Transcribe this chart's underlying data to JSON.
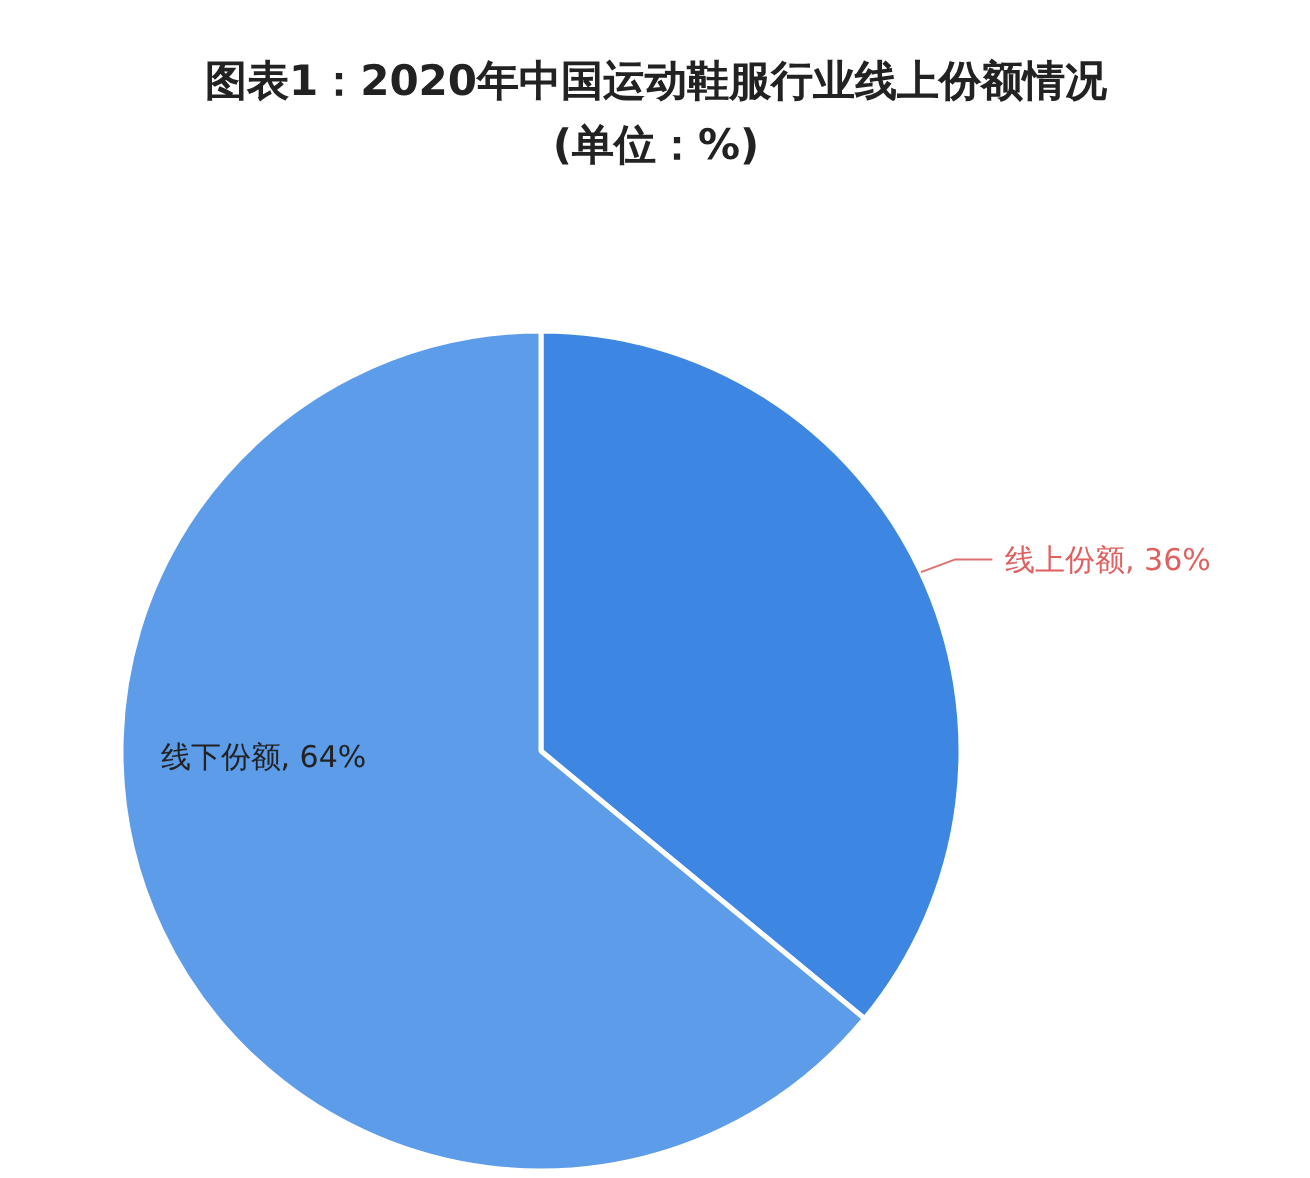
{
  "chart_data": {
    "type": "pie",
    "title": "图表1：2020年中国运动鞋服行业线上份额情况",
    "subtitle": "(单位：%)",
    "categories": [
      "线上份额",
      "线下份额"
    ],
    "values": [
      36,
      64
    ],
    "colors": [
      "#3d87e2",
      "#5c9ce8"
    ],
    "value_labels": [
      "36%",
      "64%"
    ]
  }
}
